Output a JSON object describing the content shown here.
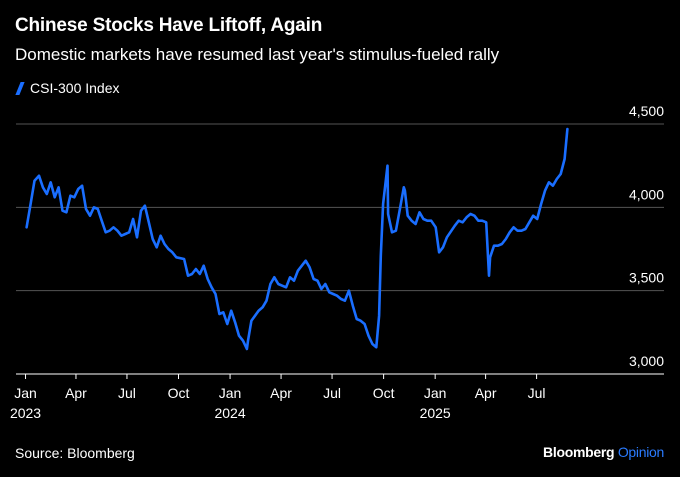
{
  "header": {
    "title": "Chinese Stocks Have Liftoff, Again",
    "subtitle": "Domestic markets have resumed last year's stimulus-fueled rally"
  },
  "footer": {
    "source": "Source: Bloomberg",
    "brand_main": "Bloomberg",
    "brand_accent": "Opinion"
  },
  "colors": {
    "background": "#000000",
    "line": "#1a6eff",
    "grid": "#555555",
    "text": "#ffffff",
    "brand_accent": "#2a7bff"
  },
  "chart_data": {
    "type": "line",
    "title": "Chinese Stocks Have Liftoff, Again",
    "subtitle": "Domestic markets have resumed last year's stimulus-fueled rally",
    "xlabel": "",
    "ylabel": "",
    "ylim": [
      3000,
      4500
    ],
    "y_ticks": [
      3000,
      3500,
      4000,
      4500
    ],
    "y_tick_labels": [
      "3,000",
      "3,500",
      "4,000",
      "4,500"
    ],
    "y_axis_position": "right",
    "grid": true,
    "legend": "top-left",
    "x_ticks": [
      {
        "date": "2023-01-01",
        "label": "Jan",
        "year": "2023"
      },
      {
        "date": "2023-04-01",
        "label": "Apr",
        "year": ""
      },
      {
        "date": "2023-07-01",
        "label": "Jul",
        "year": ""
      },
      {
        "date": "2023-10-01",
        "label": "Oct",
        "year": ""
      },
      {
        "date": "2024-01-01",
        "label": "Jan",
        "year": "2024"
      },
      {
        "date": "2024-04-01",
        "label": "Apr",
        "year": ""
      },
      {
        "date": "2024-07-01",
        "label": "Jul",
        "year": ""
      },
      {
        "date": "2024-10-01",
        "label": "Oct",
        "year": ""
      },
      {
        "date": "2025-01-01",
        "label": "Jan",
        "year": "2025"
      },
      {
        "date": "2025-04-01",
        "label": "Apr",
        "year": ""
      },
      {
        "date": "2025-07-01",
        "label": "Jul",
        "year": ""
      }
    ],
    "x_range": [
      "2022-12-15",
      "2025-10-15"
    ],
    "series": [
      {
        "name": "CSI-300 Index",
        "color": "#1a6eff",
        "x": [
          "2023-01-03",
          "2023-01-10",
          "2023-01-17",
          "2023-01-25",
          "2023-02-01",
          "2023-02-08",
          "2023-02-15",
          "2023-02-22",
          "2023-03-01",
          "2023-03-08",
          "2023-03-15",
          "2023-03-22",
          "2023-03-29",
          "2023-04-05",
          "2023-04-12",
          "2023-04-19",
          "2023-04-26",
          "2023-05-03",
          "2023-05-10",
          "2023-05-17",
          "2023-05-24",
          "2023-05-31",
          "2023-06-07",
          "2023-06-14",
          "2023-06-21",
          "2023-06-28",
          "2023-07-05",
          "2023-07-12",
          "2023-07-19",
          "2023-07-26",
          "2023-08-02",
          "2023-08-09",
          "2023-08-16",
          "2023-08-23",
          "2023-08-30",
          "2023-09-06",
          "2023-09-13",
          "2023-09-20",
          "2023-09-27",
          "2023-10-11",
          "2023-10-18",
          "2023-10-25",
          "2023-11-01",
          "2023-11-08",
          "2023-11-15",
          "2023-11-22",
          "2023-11-29",
          "2023-12-06",
          "2023-12-13",
          "2023-12-20",
          "2023-12-27",
          "2024-01-03",
          "2024-01-10",
          "2024-01-17",
          "2024-01-24",
          "2024-01-31",
          "2024-02-02",
          "2024-02-08",
          "2024-02-21",
          "2024-02-28",
          "2024-03-06",
          "2024-03-13",
          "2024-03-20",
          "2024-03-27",
          "2024-04-03",
          "2024-04-10",
          "2024-04-17",
          "2024-04-24",
          "2024-05-01",
          "2024-05-08",
          "2024-05-15",
          "2024-05-22",
          "2024-05-29",
          "2024-06-05",
          "2024-06-12",
          "2024-06-19",
          "2024-06-26",
          "2024-07-03",
          "2024-07-10",
          "2024-07-17",
          "2024-07-24",
          "2024-07-31",
          "2024-08-07",
          "2024-08-14",
          "2024-08-21",
          "2024-08-28",
          "2024-09-04",
          "2024-09-11",
          "2024-09-18",
          "2024-09-23",
          "2024-09-26",
          "2024-09-30",
          "2024-10-08",
          "2024-10-09",
          "2024-10-16",
          "2024-10-23",
          "2024-10-30",
          "2024-11-06",
          "2024-11-08",
          "2024-11-13",
          "2024-11-20",
          "2024-11-27",
          "2024-12-04",
          "2024-12-11",
          "2024-12-18",
          "2024-12-25",
          "2025-01-02",
          "2025-01-08",
          "2025-01-15",
          "2025-01-22",
          "2025-02-05",
          "2025-02-12",
          "2025-02-19",
          "2025-02-26",
          "2025-03-05",
          "2025-03-12",
          "2025-03-19",
          "2025-03-26",
          "2025-04-02",
          "2025-04-07",
          "2025-04-09",
          "2025-04-16",
          "2025-04-23",
          "2025-04-30",
          "2025-05-07",
          "2025-05-14",
          "2025-05-21",
          "2025-05-28",
          "2025-06-04",
          "2025-06-11",
          "2025-06-18",
          "2025-06-25",
          "2025-07-02",
          "2025-07-09",
          "2025-07-16",
          "2025-07-23",
          "2025-07-30",
          "2025-08-06",
          "2025-08-13",
          "2025-08-20",
          "2025-08-25"
        ],
        "y": [
          3880,
          4020,
          4160,
          4190,
          4120,
          4080,
          4150,
          4060,
          4120,
          3980,
          3970,
          4070,
          4060,
          4110,
          4130,
          3990,
          3950,
          4000,
          3990,
          3920,
          3850,
          3860,
          3880,
          3860,
          3830,
          3840,
          3850,
          3930,
          3820,
          3980,
          4010,
          3910,
          3810,
          3760,
          3830,
          3780,
          3750,
          3730,
          3700,
          3690,
          3590,
          3600,
          3630,
          3600,
          3650,
          3570,
          3520,
          3480,
          3360,
          3370,
          3300,
          3380,
          3310,
          3230,
          3200,
          3150,
          3200,
          3320,
          3380,
          3400,
          3440,
          3540,
          3580,
          3540,
          3530,
          3520,
          3580,
          3560,
          3620,
          3650,
          3680,
          3640,
          3570,
          3560,
          3510,
          3540,
          3490,
          3480,
          3470,
          3450,
          3440,
          3500,
          3410,
          3330,
          3320,
          3300,
          3230,
          3180,
          3160,
          3350,
          3710,
          4020,
          4250,
          3960,
          3850,
          3860,
          3990,
          4120,
          4100,
          3950,
          3920,
          3900,
          3970,
          3930,
          3920,
          3920,
          3880,
          3730,
          3760,
          3820,
          3890,
          3920,
          3910,
          3940,
          3960,
          3950,
          3920,
          3920,
          3910,
          3590,
          3700,
          3770,
          3770,
          3780,
          3810,
          3850,
          3880,
          3860,
          3860,
          3870,
          3910,
          3950,
          3930,
          4020,
          4100,
          4150,
          4130,
          4170,
          4200,
          4290,
          4470
        ]
      }
    ]
  }
}
